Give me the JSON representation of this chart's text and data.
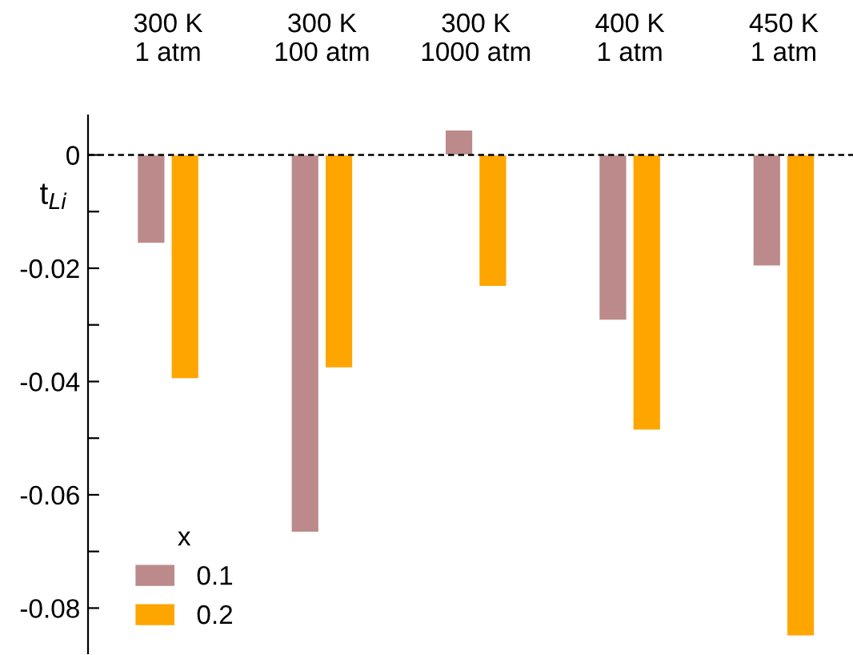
{
  "chart_data": {
    "type": "bar",
    "categories": [
      "300 K\n1 atm",
      "300 K\n100 atm",
      "300 K\n1000 atm",
      "400 K\n1 atm",
      "450 K\n1 atm"
    ],
    "series": [
      {
        "name": "0.1",
        "color": "#bc8a8a",
        "values": [
          -0.0156,
          -0.0666,
          0.0044,
          -0.0292,
          -0.0196
        ]
      },
      {
        "name": "0.2",
        "color": "#ffa500",
        "values": [
          -0.0395,
          -0.0376,
          -0.0232,
          -0.0486,
          -0.0849
        ]
      }
    ],
    "ylabel": "t$_{Li}$",
    "legend_title": "x",
    "legend": "bottom left",
    "grid": false,
    "ylim": [
      -0.088,
      0.007
    ],
    "yticks": [
      0,
      {
        "value": -0.01,
        "label": null
      },
      -0.02,
      {
        "value": -0.03,
        "label": null
      },
      -0.04,
      {
        "value": -0.05,
        "label": null
      },
      -0.06,
      {
        "value": -0.07,
        "label": null
      },
      -0.08
    ],
    "ref_lines": [
      {
        "axis": "y",
        "value": 0,
        "color": "#000000",
        "line_style": "dashed"
      }
    ]
  }
}
